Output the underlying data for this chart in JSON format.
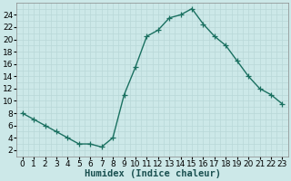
{
  "x": [
    0,
    1,
    2,
    3,
    4,
    5,
    6,
    7,
    8,
    9,
    10,
    11,
    12,
    13,
    14,
    15,
    16,
    17,
    18,
    19,
    20,
    21,
    22,
    23
  ],
  "y": [
    8,
    7,
    6,
    5,
    4,
    3,
    3,
    2.5,
    4,
    11,
    15.5,
    20.5,
    21.5,
    23.5,
    24,
    25,
    22.5,
    20.5,
    19,
    16.5,
    14,
    12,
    11,
    9.5
  ],
  "line_color": "#1a7060",
  "marker": "+",
  "marker_size": 4,
  "linewidth": 1.0,
  "xlabel": "Humidex (Indice chaleur)",
  "xlabel_fontsize": 7.5,
  "bg_color": "#cce8e8",
  "grid_major_color": "#b8d8d8",
  "grid_minor_color": "#d0e8e8",
  "xlim": [
    -0.5,
    23.5
  ],
  "ylim": [
    1,
    26
  ],
  "yticks": [
    2,
    4,
    6,
    8,
    10,
    12,
    14,
    16,
    18,
    20,
    22,
    24
  ],
  "xticks": [
    0,
    1,
    2,
    3,
    4,
    5,
    6,
    7,
    8,
    9,
    10,
    11,
    12,
    13,
    14,
    15,
    16,
    17,
    18,
    19,
    20,
    21,
    22,
    23
  ],
  "tick_fontsize": 6.5
}
